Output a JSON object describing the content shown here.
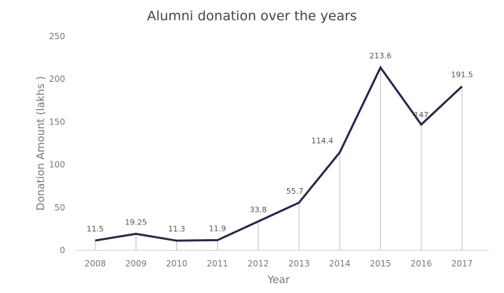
{
  "chart_data": {
    "type": "line",
    "title": "Alumni donation over the years",
    "xlabel": "Year",
    "ylabel": "Donation Amount (lakhs )",
    "categories": [
      "2008",
      "2009",
      "2010",
      "2011",
      "2012",
      "2013",
      "2014",
      "2015",
      "2016",
      "2017"
    ],
    "series": [
      {
        "values": [
          11.5,
          19.25,
          11.3,
          11.9,
          33.8,
          55.7,
          114.4,
          213.6,
          147,
          191.5
        ],
        "labels": [
          "11.5",
          "19.25",
          "11.3",
          "11.9",
          "33.8",
          "55.7",
          "114.4",
          "213.6",
          "147",
          "191.5"
        ]
      }
    ],
    "yticks": [
      "0",
      "50",
      "100",
      "150",
      "200",
      "250"
    ],
    "ylim": [
      0,
      250
    ],
    "grid": false,
    "drop_lines": true,
    "line_color": "#25284a"
  }
}
